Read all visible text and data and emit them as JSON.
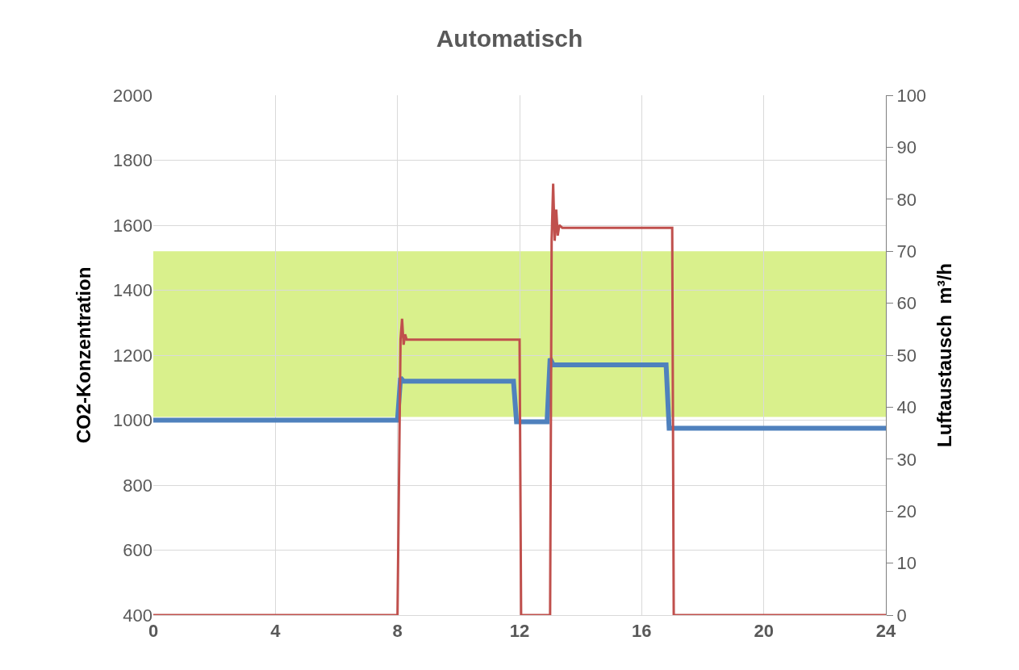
{
  "chart_data": {
    "type": "line",
    "title": "Automatisch",
    "ylabel": "CO2-Konzentration",
    "y2label": "Luftaustausch  m³/h",
    "xlim": [
      0,
      24
    ],
    "xticks": [
      0,
      4,
      8,
      12,
      16,
      20,
      24
    ],
    "ylim": [
      400,
      2000
    ],
    "yticks": [
      400,
      600,
      800,
      1000,
      1200,
      1400,
      1600,
      1800,
      2000
    ],
    "y2lim": [
      0,
      100
    ],
    "y2ticks": [
      0,
      10,
      20,
      30,
      40,
      50,
      60,
      70,
      80,
      90,
      100
    ],
    "grid": true,
    "line_style": "solid",
    "marker": "none",
    "bands": [
      {
        "axis": "y",
        "from": 1010,
        "to": 1520,
        "color": "#d9f08c"
      }
    ],
    "series": [
      {
        "color": "#4f81bd",
        "x": [
          0,
          8.0,
          8.1,
          8.2,
          11.8,
          11.9,
          12.9,
          13.0,
          13.1,
          16.8,
          16.9,
          24
        ],
        "values": [
          1000,
          1000,
          1130,
          1120,
          1120,
          995,
          995,
          1190,
          1170,
          1170,
          975,
          975
        ]
      },
      {
        "color": "#c0504d",
        "axis": "y2",
        "x": [
          0,
          8.0,
          8.1,
          8.15,
          8.2,
          8.25,
          8.3,
          12.0,
          12.05,
          13.0,
          13.05,
          13.1,
          13.15,
          13.2,
          13.25,
          13.3,
          13.4,
          17.0,
          17.05,
          24
        ],
        "values": [
          0,
          0,
          53,
          57,
          52,
          54,
          53,
          53,
          0,
          0,
          72,
          83,
          72,
          78,
          73,
          75,
          74.5,
          74.5,
          0,
          0
        ]
      }
    ]
  }
}
